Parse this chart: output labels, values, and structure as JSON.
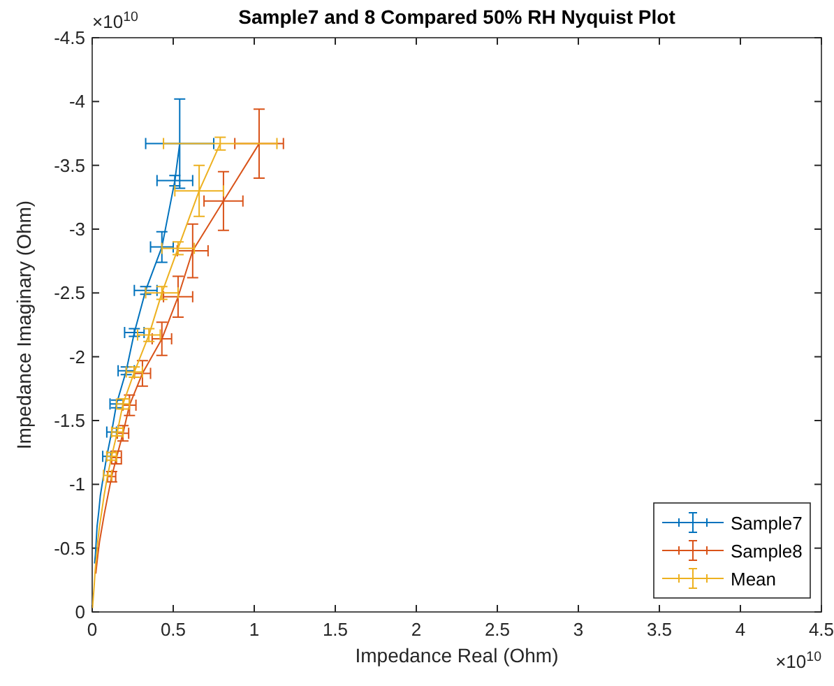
{
  "chart_data": {
    "type": "line",
    "title": "Sample7 and 8 Compared 50% RH Nyquist Plot",
    "xlabel": "Impedance Real (Ohm)",
    "ylabel": "Impedance Imaginary (Ohm)",
    "xlim": [
      0,
      4.5
    ],
    "xticks": [
      0,
      0.5,
      1,
      1.5,
      2,
      2.5,
      3,
      3.5,
      4,
      4.5
    ],
    "ylim": [
      0,
      -4.5
    ],
    "yticks": [
      0,
      -0.5,
      -1,
      -1.5,
      -2,
      -2.5,
      -3,
      -3.5,
      -4,
      -4.5
    ],
    "grid": false,
    "legend": "bottom right",
    "marker": "none",
    "line_style": "solid",
    "annotations": [
      "×10$^{10}$",
      "×10$^{10}$"
    ],
    "series": [
      {
        "name": "Sample7",
        "color": "#0072bd",
        "x": [
          0.54,
          0.51,
          0.43,
          0.33,
          0.26,
          0.21,
          0.15,
          0.12,
          0.09,
          0.07,
          0.05,
          0.04,
          0.03,
          0.025,
          0.02,
          0.015
        ],
        "values": [
          -3.67,
          -3.38,
          -2.86,
          -2.52,
          -2.19,
          -1.89,
          -1.63,
          -1.41,
          -1.22,
          -1.07,
          -0.91,
          -0.78,
          -0.67,
          -0.56,
          -0.45,
          -0.38
        ],
        "errors": [
          0.35,
          0.04,
          0.12,
          0.03,
          0.03,
          0.03,
          0.03,
          null,
          null,
          null,
          null,
          null,
          null,
          null,
          null,
          null
        ],
        "xerrors": [
          0.21,
          0.11,
          0.07,
          0.07,
          0.06,
          0.05,
          0.04,
          0.03,
          0.025,
          null,
          null,
          null,
          null,
          null,
          null,
          null
        ]
      },
      {
        "name": "Sample8",
        "color": "#d95319",
        "x": [
          1.03,
          0.81,
          0.62,
          0.53,
          0.43,
          0.31,
          0.23,
          0.19,
          0.15,
          0.12,
          0.095,
          0.075,
          0.06,
          0.045,
          0.035,
          0.028,
          0.022
        ],
        "values": [
          -3.67,
          -3.22,
          -2.83,
          -2.47,
          -2.14,
          -1.87,
          -1.62,
          -1.4,
          -1.21,
          -1.06,
          -0.9,
          -0.77,
          -0.66,
          -0.55,
          -0.45,
          -0.37,
          -0.3
        ],
        "errors": [
          0.27,
          0.23,
          0.21,
          0.16,
          0.13,
          0.1,
          0.08,
          0.06,
          0.05,
          0.04,
          null,
          null,
          null,
          null,
          null,
          null,
          null
        ],
        "xerrors": [
          0.15,
          0.12,
          0.095,
          0.09,
          0.06,
          0.05,
          0.04,
          0.035,
          0.03,
          0.025,
          null,
          null,
          null,
          null,
          null,
          null,
          null
        ]
      },
      {
        "name": "Mean",
        "color": "#edb120",
        "x": [
          0.79,
          0.66,
          0.53,
          0.43,
          0.35,
          0.26,
          0.19,
          0.155,
          0.12,
          0.095,
          0.073,
          0.058,
          0.045,
          0.035,
          0.028,
          0.022,
          0.017,
          0.012,
          0.006,
          0.002
        ],
        "values": [
          -3.67,
          -3.3,
          -2.85,
          -2.5,
          -2.17,
          -1.88,
          -1.63,
          -1.41,
          -1.22,
          -1.07,
          -0.91,
          -0.78,
          -0.67,
          -0.56,
          -0.45,
          -0.38,
          -0.3,
          -0.2,
          -0.1,
          -0.03
        ],
        "errors": [
          0.05,
          0.2,
          0.05,
          0.05,
          0.05,
          0.04,
          0.04,
          0.03,
          0.03,
          null,
          null,
          null,
          null,
          null,
          null,
          null,
          null,
          null,
          null,
          null
        ],
        "xerrors": [
          0.35,
          0.15,
          0.1,
          0.1,
          0.07,
          0.05,
          0.04,
          0.035,
          0.03,
          0.025,
          null,
          null,
          null,
          null,
          null,
          null,
          null,
          null,
          null,
          null
        ]
      }
    ]
  }
}
